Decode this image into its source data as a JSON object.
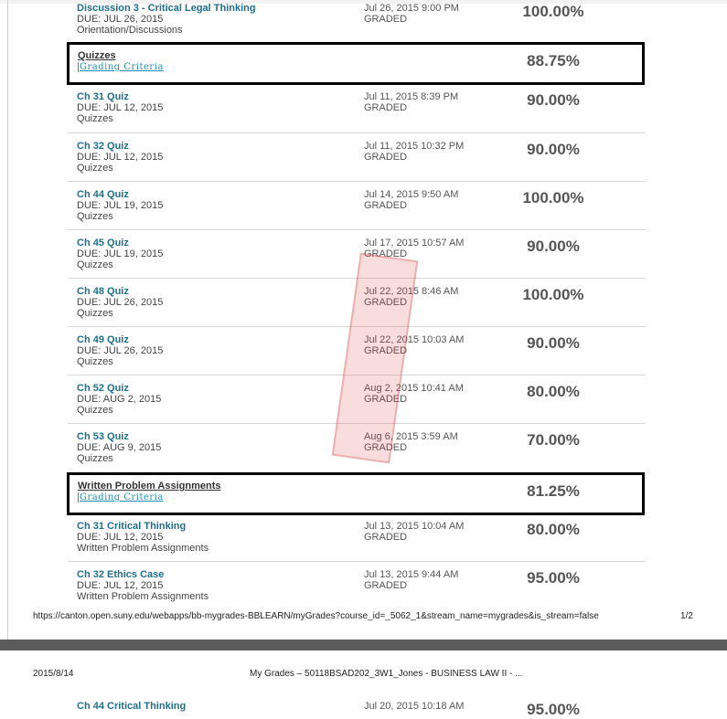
{
  "rows": [
    {
      "title": "Discussion 3 - Critical Legal Thinking",
      "due": "DUE: JUL 26, 2015",
      "category": "Orientation/Discussions",
      "date": "Jul 26, 2015 9:00 PM",
      "status": "GRADED",
      "score": "100.00%"
    },
    {
      "title": "Ch 31 Quiz",
      "due": "DUE: JUL 12, 2015",
      "category": "Quizzes",
      "date": "Jul 11, 2015 8:39 PM",
      "status": "GRADED",
      "score": "90.00%"
    },
    {
      "title": "Ch 32 Quiz",
      "due": "DUE: JUL 12, 2015",
      "category": "Quizzes",
      "date": "Jul 11, 2015 10:32 PM",
      "status": "GRADED",
      "score": "90.00%"
    },
    {
      "title": "Ch 44 Quiz",
      "due": "DUE: JUL 19, 2015",
      "category": "Quizzes",
      "date": "Jul 14, 2015 9:50 AM",
      "status": "GRADED",
      "score": "100.00%"
    },
    {
      "title": "Ch 45 Quiz",
      "due": "DUE: JUL 19, 2015",
      "category": "Quizzes",
      "date": "Jul 17, 2015 10:57 AM",
      "status": "GRADED",
      "score": "90.00%"
    },
    {
      "title": "Ch 48 Quiz",
      "due": "DUE: JUL 26, 2015",
      "category": "Quizzes",
      "date": "Jul 22, 2015 8:46 AM",
      "status": "GRADED",
      "score": "100.00%"
    },
    {
      "title": "Ch 49 Quiz",
      "due": "DUE: JUL 26, 2015",
      "category": "Quizzes",
      "date": "Jul 22, 2015 10:03 AM",
      "status": "GRADED",
      "score": "90.00%"
    },
    {
      "title": "Ch 52 Quiz",
      "due": "DUE: AUG 2, 2015",
      "category": "Quizzes",
      "date": "Aug 2, 2015 10:41 AM",
      "status": "GRADED",
      "score": "80.00%"
    },
    {
      "title": "Ch 53 Quiz",
      "due": "DUE: AUG 9, 2015",
      "category": "Quizzes",
      "date": "Aug 6, 2015 3:59 AM",
      "status": "GRADED",
      "score": "70.00%"
    },
    {
      "title": "Ch 31 Critical Thinking",
      "due": "DUE: JUL 12, 2015",
      "category": "Written Problem Assignments",
      "date": "Jul 13, 2015 10:04 AM",
      "status": "GRADED",
      "score": "80.00%"
    },
    {
      "title": "Ch 32 Ethics Case",
      "due": "DUE: JUL 12, 2015",
      "category": "Written Problem Assignments",
      "date": "Jul 13, 2015 9:44 AM",
      "status": "GRADED",
      "score": "95.00%"
    },
    {
      "title": "Ch 44 Critical Thinking",
      "due": "",
      "category": "",
      "date": "Jul 20, 2015 10:18 AM",
      "status": "",
      "score": "95.00%"
    }
  ],
  "categories": [
    {
      "title": "Quizzes",
      "link": "Grading Criteria",
      "score": "88.75%"
    },
    {
      "title": "Written Problem Assignments",
      "link": "Grading Criteria",
      "score": "81.25%"
    }
  ],
  "footer": {
    "url": "https://canton.open.suny.edu/webapps/bb-mygrades-BBLEARN/myGrades?course_id=_5062_1&stream_name=mygrades&is_stream=false",
    "page": "1/2"
  },
  "header2": {
    "date": "2015/8/14",
    "title": "My Grades – 50118BSAD202_3W1_Jones - BUSINESS LAW II - ..."
  },
  "colors": {
    "title_link": "#1f6f8b",
    "criteria_link": "#1f8fb8",
    "stamp": "#dc3c3c"
  }
}
